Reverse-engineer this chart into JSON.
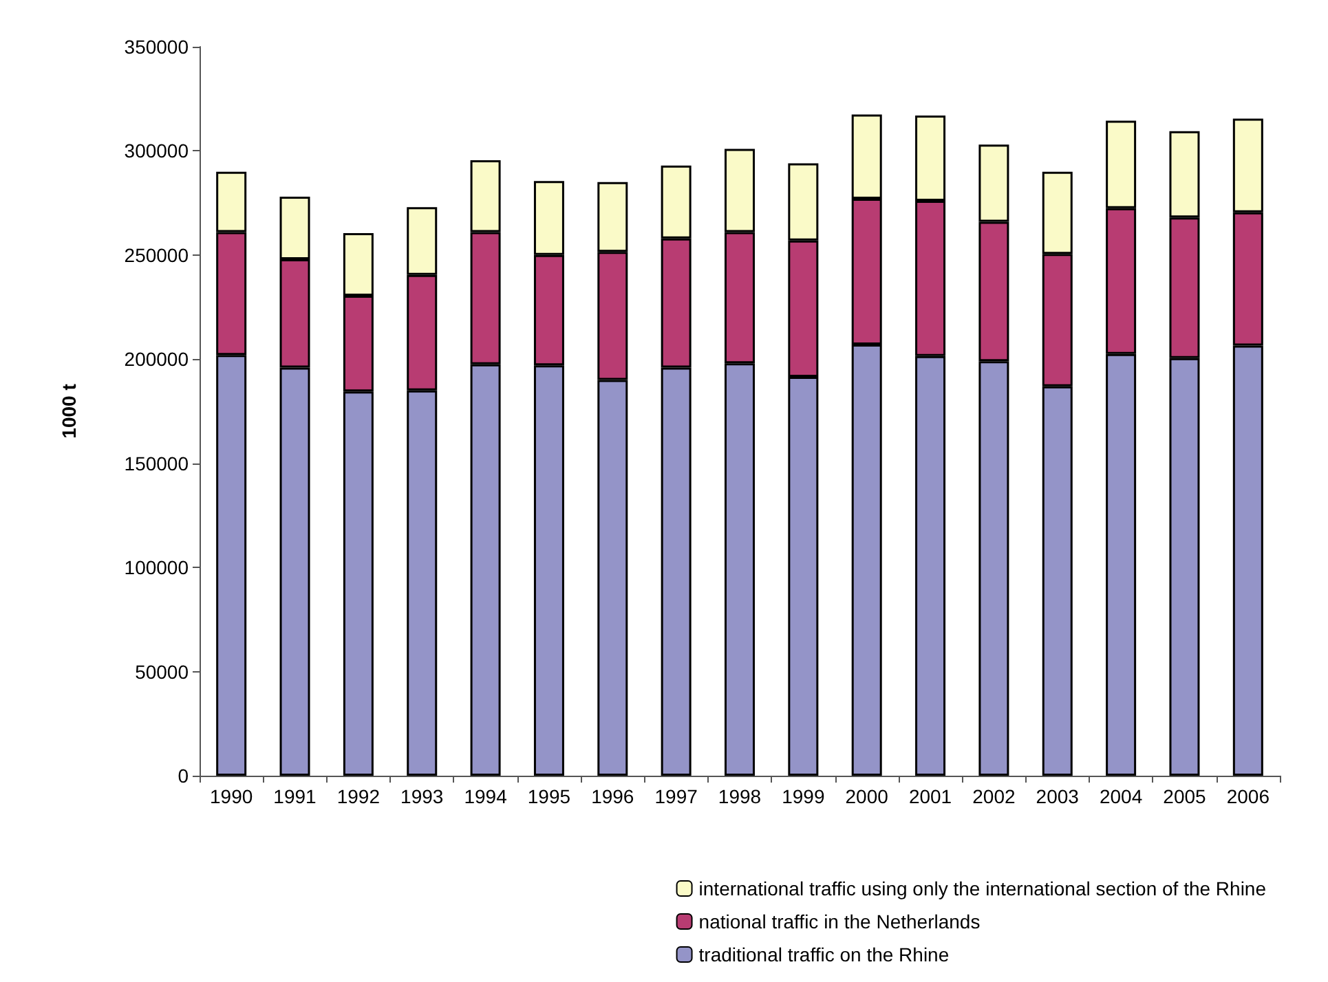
{
  "chart_data": {
    "type": "bar",
    "stacked": true,
    "ylabel": "1000 t",
    "categories": [
      "1990",
      "1991",
      "1992",
      "1993",
      "1994",
      "1995",
      "1996",
      "1997",
      "1998",
      "1999",
      "2000",
      "2001",
      "2002",
      "2003",
      "2004",
      "2005",
      "2006"
    ],
    "series": [
      {
        "name": "traditional traffic on the Rhine",
        "color": "#9494c8",
        "values": [
          202000,
          196000,
          184500,
          185000,
          197500,
          197000,
          190000,
          196000,
          198000,
          191500,
          207000,
          201500,
          199000,
          187000,
          202500,
          200500,
          206500
        ]
      },
      {
        "name": "national traffic in the Netherlands",
        "color": "#b83c72",
        "values": [
          59000,
          52000,
          46000,
          55500,
          63500,
          53000,
          61500,
          62000,
          63000,
          65500,
          70000,
          74500,
          67000,
          63500,
          70000,
          67500,
          64000
        ]
      },
      {
        "name": "international traffic using only the international section of the Rhine",
        "color": "#fafac8",
        "values": [
          29000,
          30000,
          30000,
          32500,
          34500,
          35500,
          33500,
          35000,
          40000,
          37000,
          40500,
          41000,
          37000,
          39500,
          42000,
          41500,
          45000
        ]
      }
    ],
    "ylim": [
      0,
      350000
    ],
    "yticks": [
      0,
      50000,
      100000,
      150000,
      200000,
      250000,
      300000,
      350000
    ],
    "grid": false,
    "legend": "bottom right"
  }
}
